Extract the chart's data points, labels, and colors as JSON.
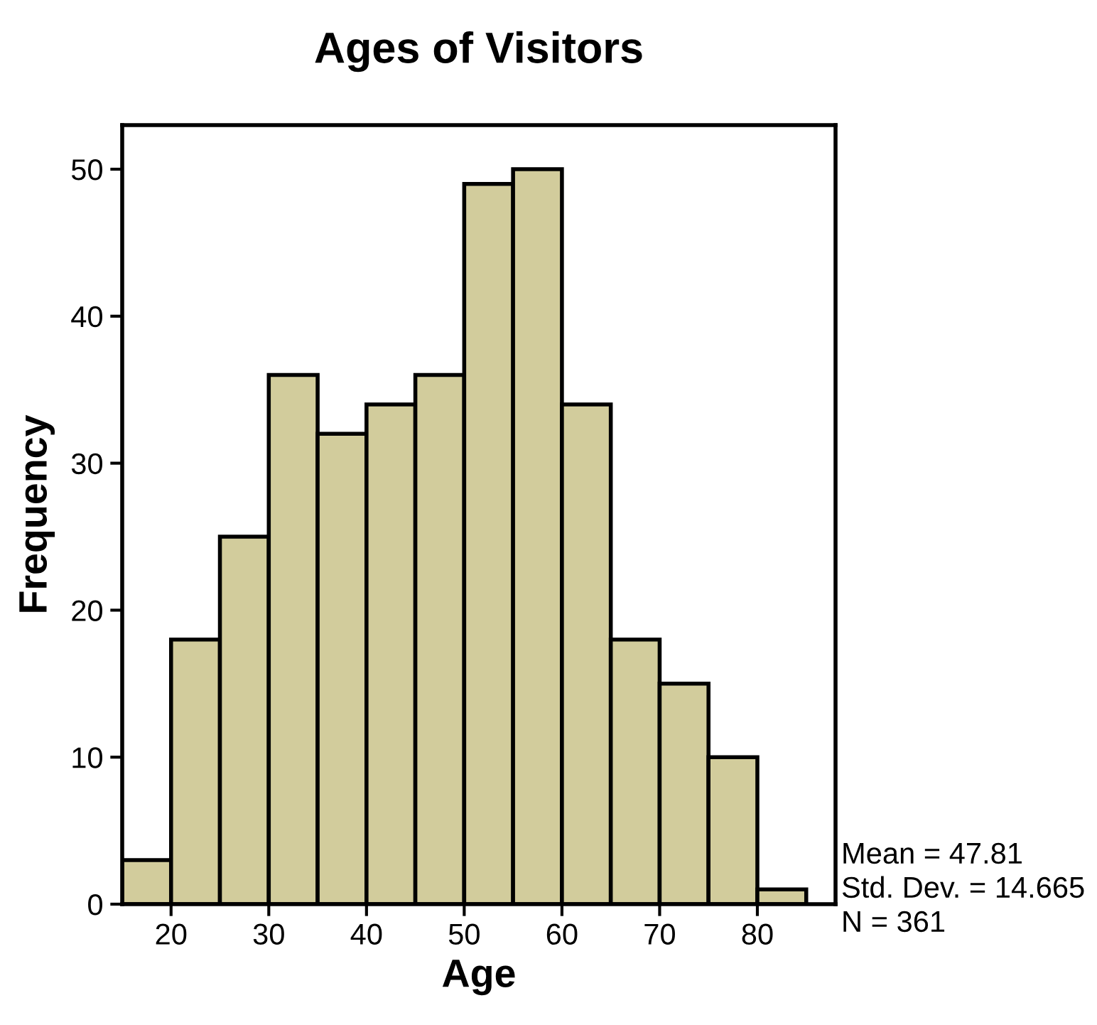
{
  "chart_data": {
    "type": "histogram",
    "title": "Ages of Visitors",
    "xlabel": "Age",
    "ylabel": "Frequency",
    "bins": [
      15,
      20,
      25,
      30,
      35,
      40,
      45,
      50,
      55,
      60,
      65,
      70,
      75,
      80,
      85
    ],
    "values": [
      3,
      18,
      25,
      36,
      32,
      34,
      36,
      49,
      50,
      34,
      18,
      15,
      10,
      1
    ],
    "color": "#d2cc9c",
    "xlim": [
      15,
      88
    ],
    "xticks": [
      20,
      30,
      40,
      50,
      60,
      70,
      80
    ],
    "ylim": [
      0,
      53
    ],
    "yticks": [
      0,
      10,
      20,
      30,
      40,
      50
    ],
    "grid": false,
    "annotations": [
      "Mean = 47.81",
      "Std. Dev. = 14.665",
      "N = 361"
    ]
  }
}
